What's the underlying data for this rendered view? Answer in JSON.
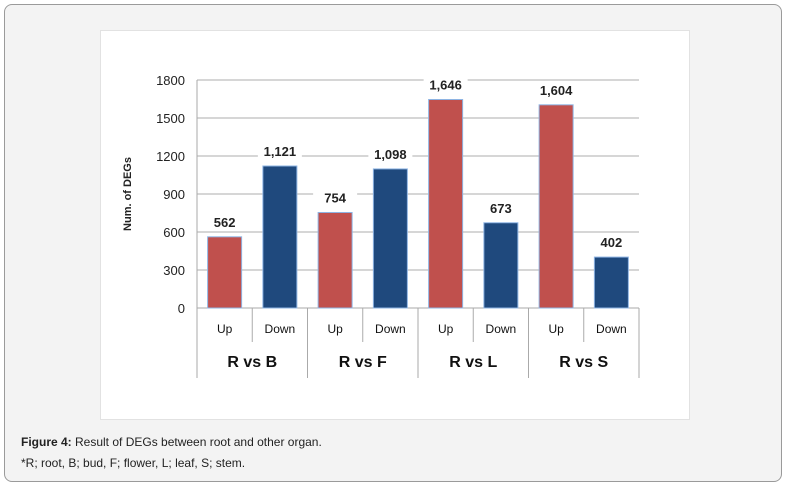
{
  "chart_data": {
    "type": "bar",
    "title": "",
    "ylabel": "Num. of DEGs",
    "xlabel": "",
    "ylim": [
      0,
      1800
    ],
    "yticks": [
      0,
      300,
      600,
      900,
      1200,
      1500,
      1800
    ],
    "grid": true,
    "groups": [
      "R vs B",
      "R vs F",
      "R vs L",
      "R vs S"
    ],
    "subcategories": [
      "Up",
      "Down"
    ],
    "series": [
      {
        "name": "Up",
        "color": "#c0504d",
        "values": [
          562,
          754,
          1646,
          1604
        ],
        "labels": [
          "562",
          "754",
          "1,646",
          "1,604"
        ]
      },
      {
        "name": "Down",
        "color": "#1f497d",
        "values": [
          1121,
          1098,
          673,
          402
        ],
        "labels": [
          "1,121",
          "1,098",
          "673",
          "402"
        ]
      }
    ]
  },
  "caption": {
    "label": "Figure 4:",
    "text": " Result of DEGs between root and other organ.",
    "note": "*R; root, B; bud, F; flower, L; leaf, S; stem."
  }
}
